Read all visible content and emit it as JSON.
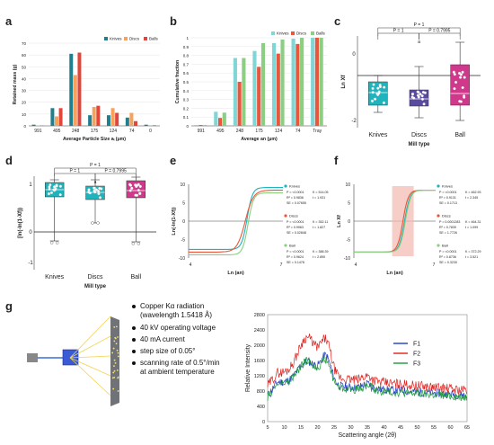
{
  "panel_labels": {
    "a": "a",
    "b": "b",
    "c": "c",
    "d": "d",
    "e": "e",
    "f": "f",
    "g": "g"
  },
  "colors": {
    "knives": "#1f7f8c",
    "discs": "#f6a15c",
    "balls": "#e2463a",
    "b_knives": "#7fd6d4",
    "b_discs": "#e8573c",
    "b_balls": "#8ccf82",
    "box_knives": "#1db4bd",
    "box_discs": "#5a4aa0",
    "box_ball": "#d0388c",
    "xrd_f1": "#1f3ac7",
    "xrd_f2": "#e0201d",
    "xrd_f3": "#1c9a3a"
  },
  "chart_data": [
    {
      "panel": "a",
      "type": "bar",
      "xlabel": "Average Particle Size aᵢ (μm)",
      "ylabel": "Retained mass (g)",
      "categories": [
        "991",
        "495",
        "248",
        "175",
        "124",
        "74",
        "0"
      ],
      "ylim": [
        0,
        70
      ],
      "yticks": [
        "0",
        "10",
        "20",
        "30",
        "40",
        "50",
        "60",
        "70"
      ],
      "legend": [
        "Knives",
        "Discs",
        "Balls"
      ],
      "series": [
        {
          "name": "Knives",
          "values": [
            1,
            15,
            61,
            9,
            9,
            7,
            1
          ]
        },
        {
          "name": "Discs",
          "values": [
            0.3,
            8,
            43,
            16,
            15,
            11,
            0.5
          ]
        },
        {
          "name": "Balls",
          "values": [
            0.3,
            15,
            62,
            17,
            11,
            4,
            0.5
          ]
        }
      ]
    },
    {
      "panel": "b",
      "type": "bar",
      "xlabel": "Average an (μm)",
      "ylabel": "Cumulative fraction",
      "categories": [
        "991",
        "495",
        "248",
        "175",
        "124",
        "74",
        "Tray"
      ],
      "ylim": [
        0,
        1
      ],
      "yticks": [
        "0",
        "0.1",
        "0.2",
        "0.3",
        "0.4",
        "0.5",
        "0.6",
        "0.7",
        "0.8",
        "0.9",
        "1"
      ],
      "legend": [
        "Knives",
        "Discs",
        "Balls"
      ],
      "series": [
        {
          "name": "Knives",
          "values": [
            0.01,
            0.16,
            0.77,
            0.85,
            0.94,
            0.99,
            1
          ]
        },
        {
          "name": "Discs",
          "values": [
            0.01,
            0.09,
            0.5,
            0.67,
            0.82,
            0.93,
            1
          ]
        },
        {
          "name": "Balls",
          "values": [
            0.01,
            0.15,
            0.77,
            0.94,
            0.98,
            1,
            1
          ]
        }
      ]
    },
    {
      "panel": "c",
      "type": "box",
      "xlabel": "Mill type",
      "ylabel": "Ln Xf",
      "categories": [
        "Knives",
        "Discs",
        "Ball"
      ],
      "yticks": [
        "0",
        "-2"
      ],
      "annotations": [
        "P = 1",
        "P = 1",
        "P = 0.7995",
        "a"
      ]
    },
    {
      "panel": "d",
      "type": "box",
      "xlabel": "Mill type",
      "ylabel": "[ln(-ln(1-Xf))",
      "categories": [
        "Knives",
        "Discs",
        "Ball"
      ],
      "yticks": [
        "1",
        "0",
        "-1"
      ],
      "annotations": [
        "P = 1",
        "P = 1",
        "P = 0.7995",
        "a"
      ]
    },
    {
      "panel": "e",
      "type": "line",
      "xlabel": "Ln (an)",
      "ylabel": "Ln(-ln(1-Xf))",
      "xticks": [
        "4",
        "7"
      ],
      "yticks": [
        "10",
        "5",
        "0",
        "-5",
        "-10"
      ],
      "legend": [
        {
          "name": "Knives",
          "lines": [
            "P = <0.0001",
            "R² = 0.9836",
            "SE = 0.07655",
            "K = 514.05",
            "t = 1.931"
          ]
        },
        {
          "name": "Discs",
          "lines": [
            "P = <0.0001",
            "R² = 0.9963",
            "SE = 0.02848",
            "K = 352.11",
            "t = 1.827"
          ]
        },
        {
          "name": "Ball",
          "lines": [
            "P = <0.0001",
            "R² = 0.9624",
            "SE = 0.1478",
            "K = 388.39",
            "t = 2.890"
          ]
        }
      ]
    },
    {
      "panel": "f",
      "type": "line",
      "xlabel": "Ln (an)",
      "ylabel": "Ln Xf",
      "xticks": [
        "4",
        "7"
      ],
      "yticks": [
        "10",
        "5",
        "0",
        "-5",
        "-10"
      ],
      "legend": [
        {
          "name": "Knives",
          "lines": [
            "P = <0.0001",
            "R² = 0.9131",
            "SE = 0.1713",
            "K = 462.93",
            "t = 2.345"
          ]
        },
        {
          "name": "Discs",
          "lines": [
            "P = 0.0001283",
            "R² = 0.7839",
            "SE = 1.7726",
            "K = 464.31",
            "t = 1.099"
          ]
        },
        {
          "name": "Ball",
          "lines": [
            "P = <0.0001",
            "R² = 0.8736",
            "SE = 0.3230",
            "K = 372.29",
            "t = 3.521"
          ]
        }
      ]
    },
    {
      "panel": "g",
      "type": "line",
      "xlabel": "Scattering angle (2θ)",
      "ylabel": "Relative Intensity",
      "xticks": [
        "5",
        "10",
        "15",
        "20",
        "25",
        "30",
        "35",
        "40",
        "45",
        "50",
        "55",
        "60",
        "65"
      ],
      "yticks": [
        "0",
        "400",
        "800",
        "1200",
        "1600",
        "2000",
        "2400",
        "2800"
      ],
      "ylim": [
        0,
        2800
      ],
      "xlim": [
        5,
        65
      ],
      "legend": [
        "F1",
        "F2",
        "F3"
      ]
    }
  ],
  "g_text": {
    "items": [
      {
        "line1": "Copper Kα radiation",
        "line2": "(wavelength 1.5418 Å)"
      },
      {
        "line1": "40 kV operating voltage",
        "line2": ""
      },
      {
        "line1": "40 mA current",
        "line2": ""
      },
      {
        "line1": "step size of 0.05°",
        "line2": ""
      },
      {
        "line1": "scanning rate of 0.5°/min",
        "line2": "at ambient temperature"
      }
    ]
  }
}
